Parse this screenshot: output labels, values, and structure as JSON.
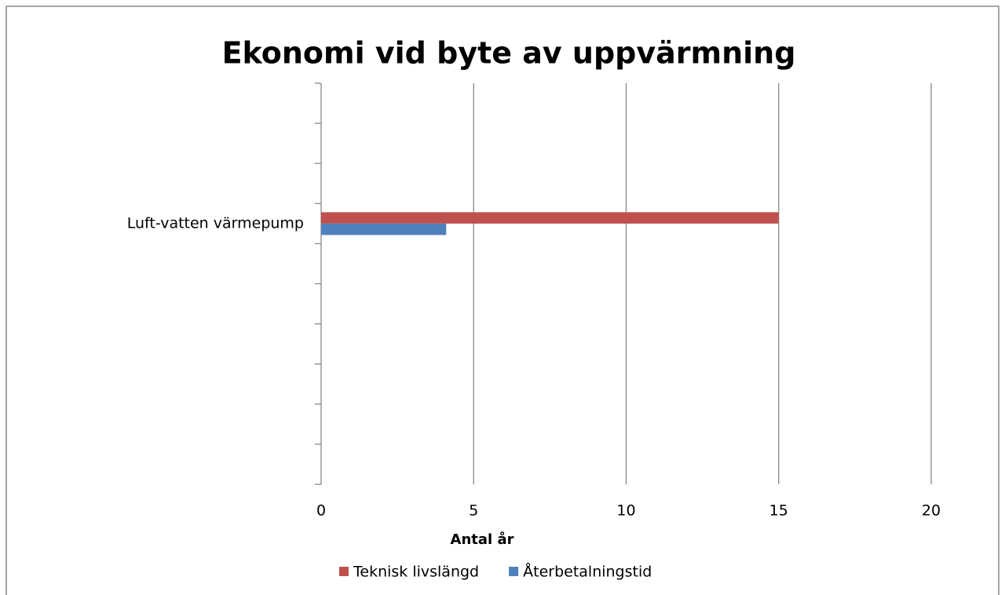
{
  "chart_data": {
    "type": "hbar",
    "title": "Ekonomi vid byte av uppvärmning",
    "x_label": "Antal år",
    "categories": [
      null,
      null,
      null,
      "Luft-vatten värmepump",
      null,
      null,
      null,
      null,
      null,
      null
    ],
    "series": [
      {
        "name": "Teknisk livslängd",
        "color": "#c0504d",
        "values": [
          null,
          null,
          null,
          15,
          null,
          null,
          null,
          null,
          null,
          null
        ]
      },
      {
        "name": "Återbetalningstid",
        "color": "#4f81bd",
        "values": [
          null,
          null,
          null,
          4.1,
          null,
          null,
          null,
          null,
          null,
          null
        ]
      }
    ],
    "xlim": [
      0,
      20
    ],
    "xticks": [
      0,
      5,
      10,
      15,
      20
    ],
    "grid": true,
    "legend": "bottom"
  }
}
